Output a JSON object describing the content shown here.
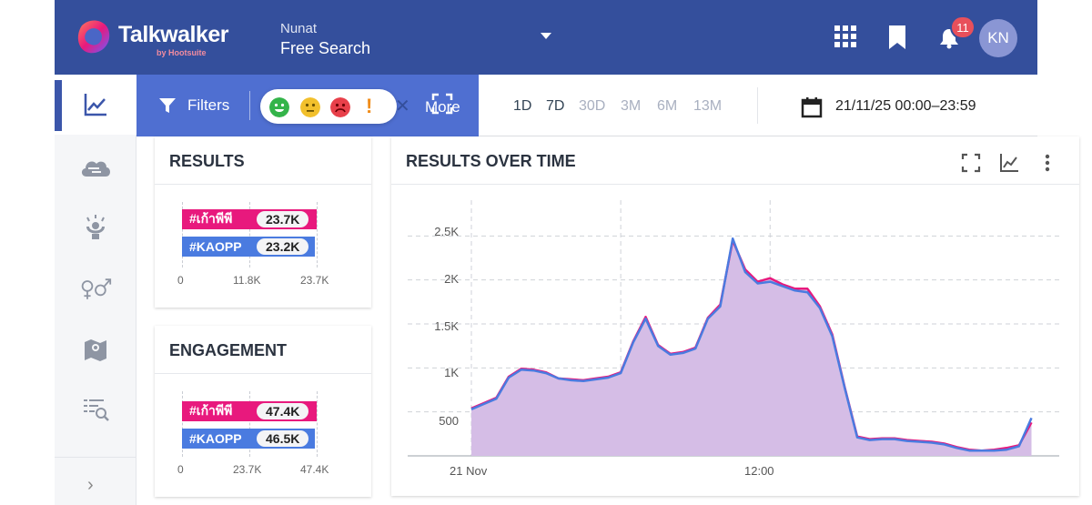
{
  "header": {
    "brand": "Talkwalker",
    "brand_sub": "by Hootsuite",
    "project_label": "Nunat",
    "project_title": "Free Search",
    "notification_count": "11",
    "avatar_initials": "KN"
  },
  "sidebar": {
    "items": [
      {
        "icon": "trend-chart-icon",
        "active": true
      },
      {
        "icon": "cloud-icon"
      },
      {
        "icon": "influencer-icon"
      },
      {
        "icon": "gender-icon"
      },
      {
        "icon": "map-icon"
      },
      {
        "icon": "search-list-icon"
      }
    ],
    "expand": "›"
  },
  "filters": {
    "label": "Filters",
    "more_label": "More",
    "sentiments": [
      "positive",
      "neutral",
      "negative",
      "unknown"
    ]
  },
  "time_ranges": [
    {
      "label": "1D",
      "enabled": true
    },
    {
      "label": "7D",
      "enabled": true
    },
    {
      "label": "30D",
      "enabled": false
    },
    {
      "label": "3M",
      "enabled": false
    },
    {
      "label": "6M",
      "enabled": false
    },
    {
      "label": "13M",
      "enabled": false
    }
  ],
  "date_range": "21/11/25 00:00–23:59",
  "results_card": {
    "title": "RESULTS",
    "bars": [
      {
        "label": "#เก้าพีพี",
        "value": "23.7K",
        "color": "#e8197d"
      },
      {
        "label": "#KAOPP",
        "value": "23.2K",
        "color": "#4a7be0"
      }
    ],
    "ticks": [
      "0",
      "11.8K",
      "23.7K"
    ]
  },
  "engagement_card": {
    "title": "ENGAGEMENT",
    "bars": [
      {
        "label": "#เก้าพีพี",
        "value": "47.4K",
        "color": "#e8197d"
      },
      {
        "label": "#KAOPP",
        "value": "46.5K",
        "color": "#4a7be0"
      }
    ],
    "ticks": [
      "0",
      "23.7K",
      "47.4K"
    ]
  },
  "over_time": {
    "title": "RESULTS OVER TIME",
    "y_ticks": [
      "2.5K",
      "2K",
      "1.5K",
      "1K",
      "500"
    ],
    "x_ticks": [
      "21 Nov",
      "12:00"
    ]
  },
  "chart_data": {
    "type": "area",
    "title": "RESULTS OVER TIME",
    "ylim": [
      0,
      2700
    ],
    "x": [
      0,
      0.5,
      1,
      1.5,
      2,
      2.5,
      3,
      3.5,
      4,
      4.5,
      5,
      5.5,
      6,
      6.5,
      7,
      7.5,
      8,
      8.5,
      9,
      9.5,
      10,
      10.5,
      11,
      11.5,
      12,
      12.5,
      13,
      13.5,
      14,
      14.5,
      15,
      15.5,
      16,
      16.5,
      17,
      17.5,
      18,
      18.5,
      19,
      19.5,
      20,
      20.5,
      21,
      21.5,
      22,
      22.5,
      23,
      23.5,
      24
    ],
    "x_tick_labels": {
      "0": "21 Nov",
      "12": "12:00"
    },
    "series": [
      {
        "name": "#เก้าพีพี",
        "color": "#e8197d",
        "values": [
          540,
          600,
          660,
          900,
          990,
          980,
          950,
          880,
          870,
          860,
          880,
          900,
          950,
          1300,
          1580,
          1260,
          1160,
          1180,
          1230,
          1570,
          1720,
          2450,
          2120,
          1980,
          2020,
          1950,
          1900,
          1900,
          1700,
          1380,
          780,
          220,
          190,
          200,
          200,
          180,
          170,
          160,
          140,
          100,
          70,
          60,
          70,
          90,
          120,
          380,
          null,
          null,
          null
        ]
      },
      {
        "name": "#KAOPP",
        "color": "#4a7be0",
        "values": [
          530,
          590,
          650,
          890,
          980,
          970,
          940,
          880,
          860,
          850,
          870,
          890,
          940,
          1290,
          1560,
          1250,
          1150,
          1170,
          1220,
          1560,
          1700,
          2470,
          2090,
          1960,
          1980,
          1930,
          1880,
          1860,
          1680,
          1360,
          770,
          210,
          180,
          190,
          190,
          170,
          160,
          150,
          130,
          90,
          60,
          60,
          60,
          70,
          110,
          430,
          null,
          null,
          null
        ]
      }
    ],
    "grid": true
  }
}
